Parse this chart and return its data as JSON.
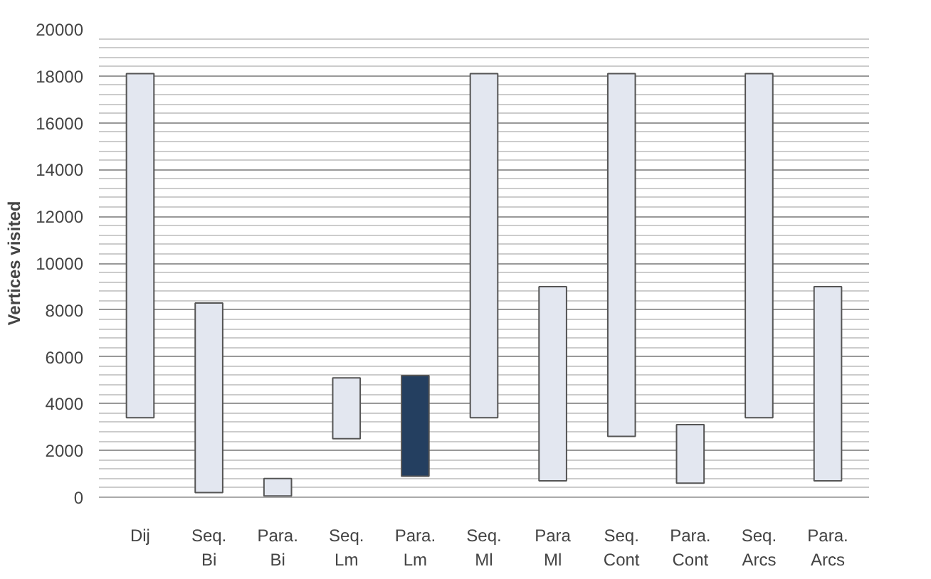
{
  "chart_data": {
    "type": "bar",
    "ylabel": "Vertices visited",
    "categories": [
      "Dij",
      "Seq. Bi",
      "Para. Bi",
      "Seq. Lm",
      "Para. Lm",
      "Seq. Ml",
      "Para Ml",
      "Seq. Cont",
      "Para. Cont",
      "Seq. Arcs",
      "Para. Arcs"
    ],
    "base": [
      3400,
      200,
      50,
      2500,
      900,
      3400,
      700,
      2600,
      600,
      3400,
      700
    ],
    "values": [
      14700,
      8100,
      750,
      2600,
      4300,
      14700,
      8300,
      15500,
      2500,
      14700,
      8300
    ],
    "colors": [
      "#e3e7f0",
      "#e3e7f0",
      "#e3e7f0",
      "#e3e7f0",
      "#243f60",
      "#e3e7f0",
      "#e3e7f0",
      "#e3e7f0",
      "#e3e7f0",
      "#e3e7f0",
      "#e3e7f0"
    ],
    "ylim": [
      0,
      20000
    ],
    "yticks": [
      0,
      2000,
      4000,
      6000,
      8000,
      10000,
      12000,
      14000,
      16000,
      18000,
      20000
    ],
    "grid": "y"
  }
}
